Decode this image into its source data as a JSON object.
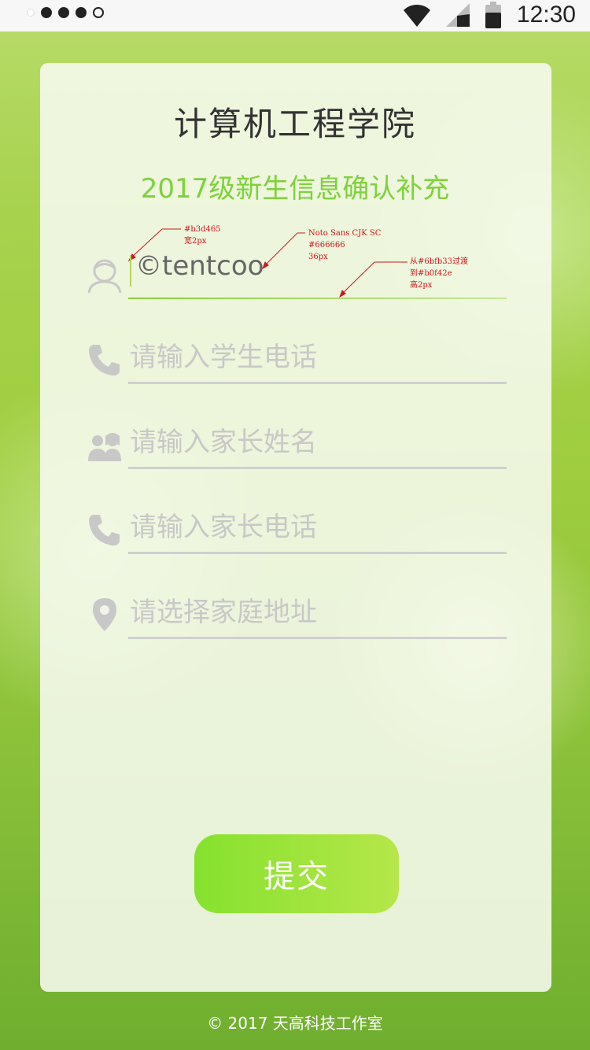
{
  "status_bar": {
    "time": "12:30"
  },
  "header": {
    "title": "计算机工程学院",
    "subtitle": "2017级新生信息确认补充"
  },
  "form": {
    "fields": [
      {
        "name": "student-name",
        "icon": "user-icon",
        "value": "©tentcoo"
      },
      {
        "name": "student-phone",
        "icon": "phone-icon",
        "placeholder": "请输入学生电话"
      },
      {
        "name": "parent-name",
        "icon": "parents-icon",
        "placeholder": "请输入家长姓名"
      },
      {
        "name": "parent-phone",
        "icon": "phone-icon",
        "placeholder": "请输入家长电话"
      },
      {
        "name": "home-address",
        "icon": "location-pin-icon",
        "placeholder": "请选择家庭地址"
      }
    ],
    "submit_label": "提交"
  },
  "annotations": {
    "cursor": [
      "#b3d465",
      "宽2px"
    ],
    "text": [
      "Noto Sans CJK SC",
      "#666666",
      "36px"
    ],
    "underline": [
      "从#6bfb33过渡",
      "到#b0f42e",
      "高2px"
    ]
  },
  "footer": {
    "copyright": "© 2017 天高科技工作室"
  },
  "colors": {
    "accent": "#7dd23a",
    "cursor": "#b3d465",
    "gradient_start": "#6bfb33",
    "gradient_end": "#b0f42e"
  }
}
